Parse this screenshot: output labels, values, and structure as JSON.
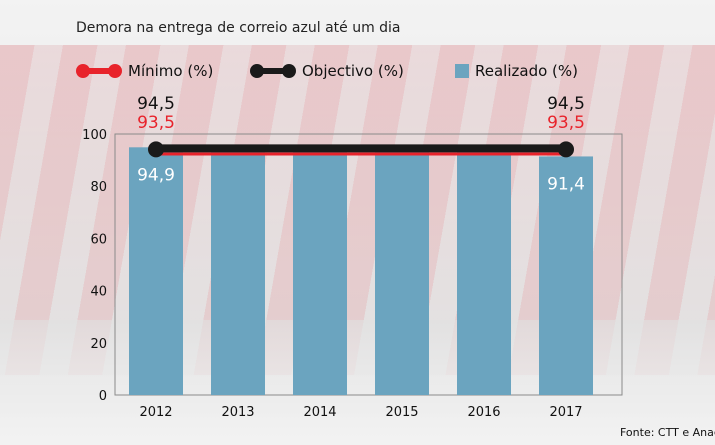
{
  "chart_data": {
    "type": "bar",
    "title": "Demora na entrega de correio azul até um dia",
    "categories": [
      "2012",
      "2013",
      "2014",
      "2015",
      "2016",
      "2017"
    ],
    "series": [
      {
        "name": "Realizado (%)",
        "kind": "bar",
        "values": [
          94.9,
          93.4,
          93.4,
          93.4,
          93.4,
          91.4
        ]
      },
      {
        "name": "Mínimo (%)",
        "kind": "line",
        "values": [
          93.5,
          93.5,
          93.5,
          93.5,
          93.5,
          93.5
        ]
      },
      {
        "name": "Objectivo (%)",
        "kind": "line",
        "values": [
          94.5,
          94.5,
          94.5,
          94.5,
          94.5,
          94.5
        ]
      }
    ],
    "ylim": [
      0,
      100
    ],
    "yticks": [
      "0",
      "20",
      "40",
      "60",
      "80",
      "100"
    ],
    "bar_labels": [
      {
        "index": 0,
        "text": "94,9"
      },
      {
        "index": 5,
        "text": "91,4"
      }
    ],
    "line_labels": {
      "objectivo": [
        "94,5",
        "94,5"
      ],
      "minimo": [
        "93,5",
        "93,5"
      ]
    },
    "grid": false,
    "legend_position": "top",
    "colors": {
      "bar": "#6ba4bf",
      "minimo": "#e8232b",
      "objectivo": "#1a1a1a"
    }
  },
  "legend": {
    "minimo": "Mínimo (%)",
    "objectivo": "Objectivo (%)",
    "realizado": "Realizado (%)"
  },
  "source": "Fonte: CTT e Anacom"
}
